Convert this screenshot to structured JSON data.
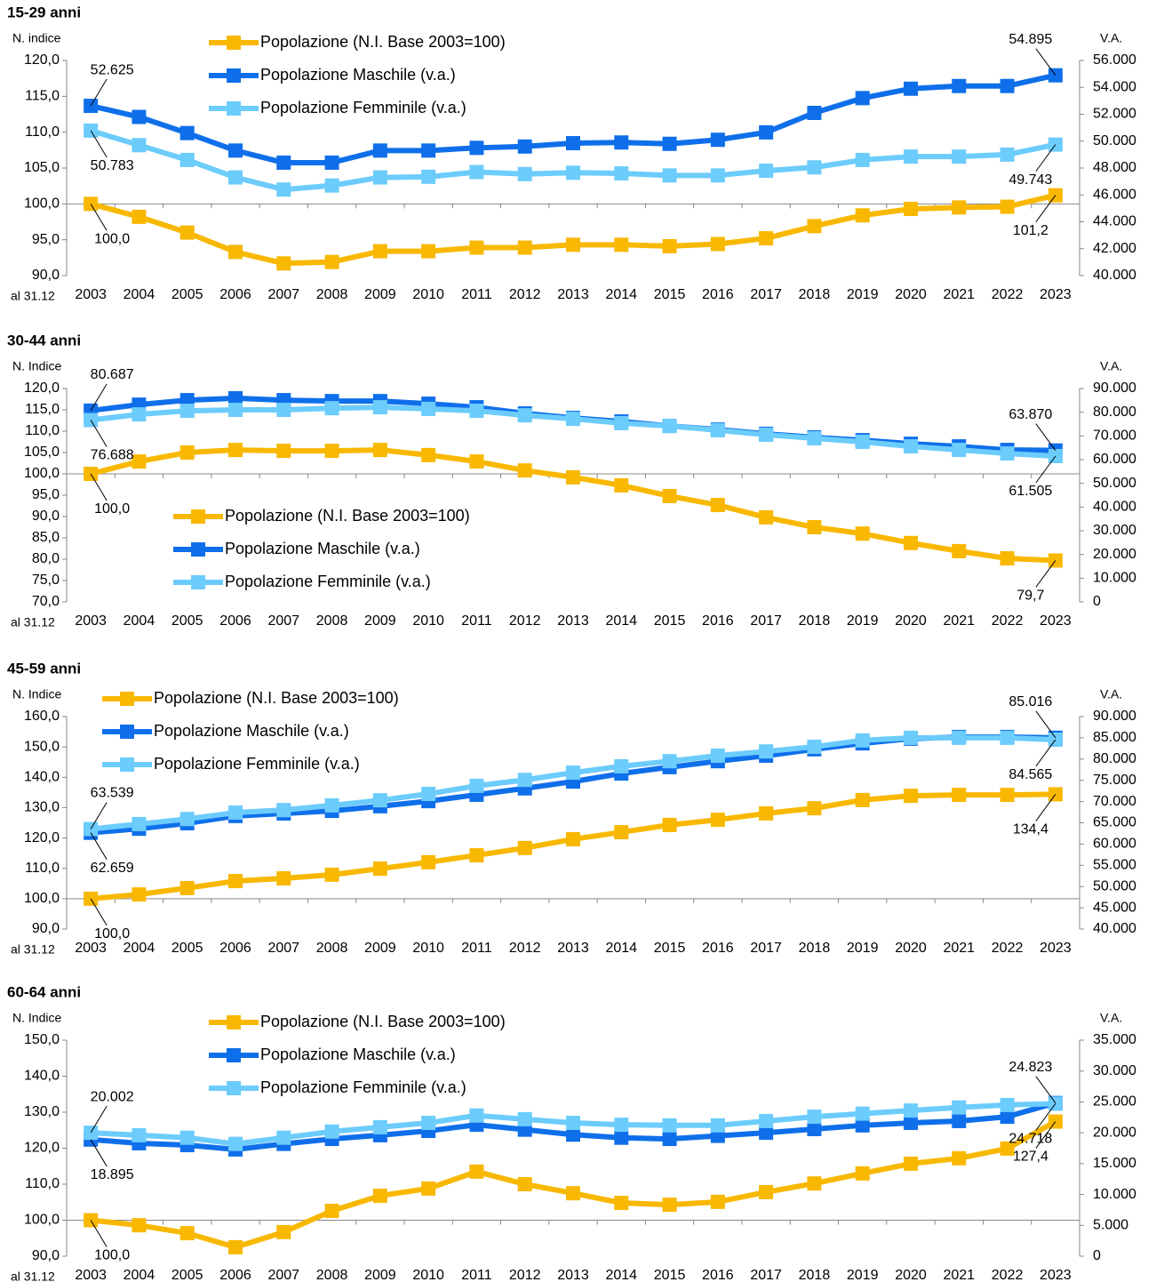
{
  "chart_data": [
    {
      "type": "line",
      "title": "15-29 anni",
      "y_label": "N. indice",
      "y2_label": "V.A.",
      "x_note": "al 31.12",
      "categories": [
        "2003",
        "2004",
        "2005",
        "2006",
        "2007",
        "2008",
        "2009",
        "2010",
        "2011",
        "2012",
        "2013",
        "2014",
        "2015",
        "2016",
        "2017",
        "2018",
        "2019",
        "2020",
        "2021",
        "2022",
        "2023"
      ],
      "series": [
        {
          "name": "Popolazione (N.I. Base 2003=100)",
          "color": "#f8b800",
          "values": [
            100.0,
            98.2,
            96.0,
            93.3,
            91.7,
            91.9,
            93.4,
            93.4,
            93.9,
            93.9,
            94.3,
            94.3,
            94.1,
            94.4,
            95.2,
            96.9,
            98.4,
            99.3,
            99.5,
            99.6,
            101.2
          ],
          "value_labels": [
            "100,0",
            null,
            null,
            null,
            null,
            null,
            null,
            null,
            null,
            null,
            null,
            null,
            null,
            null,
            null,
            null,
            null,
            null,
            null,
            null,
            "101,2"
          ]
        },
        {
          "name": "Popolazione Maschile (v.a.)",
          "color": "#0f6fea",
          "axis": "y2",
          "values": [
            52625,
            51800,
            50600,
            49300,
            48400,
            48400,
            49300,
            49300,
            49500,
            49600,
            49850,
            49900,
            49800,
            50100,
            50650,
            52100,
            53200,
            53900,
            54100,
            54100,
            54895
          ],
          "value_labels": [
            "52.625",
            null,
            null,
            null,
            null,
            null,
            null,
            null,
            null,
            null,
            null,
            null,
            null,
            null,
            null,
            null,
            null,
            null,
            null,
            null,
            "54.895"
          ]
        },
        {
          "name": "Popolazione Femminile (v.a.)",
          "color": "#6cccfb",
          "axis": "y2",
          "values": [
            50783,
            49700,
            48600,
            47300,
            46400,
            46700,
            47300,
            47350,
            47700,
            47550,
            47650,
            47600,
            47450,
            47450,
            47800,
            48050,
            48600,
            48850,
            48850,
            49000,
            49743
          ],
          "value_labels": [
            "50.783",
            null,
            null,
            null,
            null,
            null,
            null,
            null,
            null,
            null,
            null,
            null,
            null,
            null,
            null,
            null,
            null,
            null,
            null,
            null,
            "49.743"
          ]
        }
      ],
      "ylim": [
        90,
        120
      ],
      "yticks": [
        {
          "value": 90,
          "label": "90,0"
        },
        {
          "value": 95,
          "label": "95,0"
        },
        {
          "value": 100,
          "label": "100,0"
        },
        {
          "value": 105,
          "label": "105,0"
        },
        {
          "value": 110,
          "label": "110,0"
        },
        {
          "value": 115,
          "label": "115,0"
        },
        {
          "value": 120,
          "label": "120,0"
        }
      ],
      "y2lim": [
        40000,
        56000
      ],
      "y2ticks": [
        {
          "value": 40000,
          "label": "40.000"
        },
        {
          "value": 42000,
          "label": "42.000"
        },
        {
          "value": 44000,
          "label": "44.000"
        },
        {
          "value": 46000,
          "label": "46.000"
        },
        {
          "value": 48000,
          "label": "48.000"
        },
        {
          "value": 50000,
          "label": "50.000"
        },
        {
          "value": 52000,
          "label": "52.000"
        },
        {
          "value": 54000,
          "label": "54.000"
        },
        {
          "value": 56000,
          "label": "56.000"
        }
      ],
      "xaxis_at": 100,
      "legend_position": "top-center"
    },
    {
      "type": "line",
      "title": "30-44 anni",
      "y_label": "N. Indice",
      "y2_label": "V.A.",
      "x_note": "al 31.12",
      "categories": [
        "2003",
        "2004",
        "2005",
        "2006",
        "2007",
        "2008",
        "2009",
        "2010",
        "2011",
        "2012",
        "2013",
        "2014",
        "2015",
        "2016",
        "2017",
        "2018",
        "2019",
        "2020",
        "2021",
        "2022",
        "2023"
      ],
      "series": [
        {
          "name": "Popolazione (N.I. Base 2003=100)",
          "color": "#f8b800",
          "values": [
            100.0,
            102.9,
            105.0,
            105.6,
            105.4,
            105.4,
            105.6,
            104.4,
            102.9,
            100.8,
            99.2,
            97.3,
            94.8,
            92.7,
            89.8,
            87.5,
            86.0,
            83.8,
            81.9,
            80.2,
            79.7
          ],
          "value_labels": [
            "100,0",
            null,
            null,
            null,
            null,
            null,
            null,
            null,
            null,
            null,
            null,
            null,
            null,
            null,
            null,
            null,
            null,
            null,
            null,
            null,
            "79,7"
          ]
        },
        {
          "name": "Popolazione Maschile (v.a.)",
          "color": "#0f6fea",
          "axis": "y2",
          "values": [
            80687,
            83200,
            85100,
            85900,
            85100,
            84700,
            84700,
            83600,
            82100,
            79500,
            77600,
            76100,
            74200,
            72700,
            70900,
            69400,
            68200,
            66700,
            65600,
            64100,
            63870
          ],
          "value_labels": [
            "80.687",
            null,
            null,
            null,
            null,
            null,
            null,
            null,
            null,
            null,
            null,
            null,
            null,
            null,
            null,
            null,
            null,
            null,
            null,
            null,
            "63.870"
          ]
        },
        {
          "name": "Popolazione Femminile (v.a.)",
          "color": "#6cccfb",
          "axis": "y2",
          "values": [
            76688,
            79100,
            80600,
            81000,
            81000,
            81700,
            82100,
            81400,
            80600,
            78700,
            77200,
            75400,
            74200,
            72400,
            70500,
            69000,
            67500,
            65600,
            64100,
            62600,
            61505
          ],
          "value_labels": [
            "76.688",
            null,
            null,
            null,
            null,
            null,
            null,
            null,
            null,
            null,
            null,
            null,
            null,
            null,
            null,
            null,
            null,
            null,
            null,
            null,
            "61.505"
          ]
        }
      ],
      "ylim": [
        70,
        120
      ],
      "yticks": [
        {
          "value": 70,
          "label": "70,0"
        },
        {
          "value": 75,
          "label": "75,0"
        },
        {
          "value": 80,
          "label": "80,0"
        },
        {
          "value": 85,
          "label": "85,0"
        },
        {
          "value": 90,
          "label": "90,0"
        },
        {
          "value": 95,
          "label": "95,0"
        },
        {
          "value": 100,
          "label": "100,0"
        },
        {
          "value": 105,
          "label": "105,0"
        },
        {
          "value": 110,
          "label": "110,0"
        },
        {
          "value": 115,
          "label": "115,0"
        },
        {
          "value": 120,
          "label": "120,0"
        }
      ],
      "y2lim": [
        0,
        90000
      ],
      "y2ticks": [
        0,
        {
          "value": 10000,
          "label": "10.000"
        },
        {
          "value": 20000,
          "label": "20.000"
        },
        {
          "value": 30000,
          "label": "30.000"
        },
        {
          "value": 40000,
          "label": "40.000"
        },
        {
          "value": 50000,
          "label": "50.000"
        },
        {
          "value": 60000,
          "label": "60.000"
        },
        {
          "value": 70000,
          "label": "70.000"
        },
        {
          "value": 80000,
          "label": "80.000"
        },
        {
          "value": 90000,
          "label": "90.000"
        }
      ],
      "xaxis_at": 100,
      "legend_position": "bottom-left"
    },
    {
      "type": "line",
      "title": "45-59 anni",
      "y_label": "N. Indice",
      "y2_label": "V.A.",
      "x_note": "al 31.12",
      "categories": [
        "2003",
        "2004",
        "2005",
        "2006",
        "2007",
        "2008",
        "2009",
        "2010",
        "2011",
        "2012",
        "2013",
        "2014",
        "2015",
        "2016",
        "2017",
        "2018",
        "2019",
        "2020",
        "2021",
        "2022",
        "2023"
      ],
      "series": [
        {
          "name": "Popolazione (N.I. Base 2003=100)",
          "color": "#f8b800",
          "values": [
            100.0,
            101.4,
            103.5,
            105.8,
            106.7,
            107.9,
            109.9,
            112.0,
            114.3,
            116.7,
            119.6,
            121.9,
            124.3,
            126.0,
            128.1,
            129.8,
            132.5,
            133.9,
            134.2,
            134.2,
            134.4
          ],
          "value_labels": [
            "100,0",
            null,
            null,
            null,
            null,
            null,
            null,
            null,
            null,
            null,
            null,
            null,
            null,
            null,
            null,
            null,
            null,
            null,
            null,
            null,
            "134,4"
          ]
        },
        {
          "name": "Popolazione Maschile (v.a.)",
          "color": "#0f6fea",
          "axis": "y2",
          "values": [
            62659,
            63600,
            64900,
            66600,
            67200,
            67800,
            68900,
            70100,
            71600,
            73100,
            74700,
            76600,
            78100,
            79500,
            80800,
            82300,
            83700,
            84800,
            85200,
            85200,
            85016
          ],
          "value_labels": [
            "62.659",
            null,
            null,
            null,
            null,
            null,
            null,
            null,
            null,
            null,
            null,
            null,
            null,
            null,
            null,
            null,
            null,
            null,
            null,
            null,
            "85.016"
          ]
        },
        {
          "name": "Popolazione Femminile (v.a.)",
          "color": "#6cccfb",
          "axis": "y2",
          "values": [
            63539,
            64700,
            65900,
            67400,
            68000,
            69100,
            70300,
            71800,
            73700,
            75100,
            76800,
            78300,
            79500,
            80800,
            81800,
            82900,
            84400,
            85000,
            85000,
            85000,
            84565
          ],
          "value_labels": [
            "63.539",
            null,
            null,
            null,
            null,
            null,
            null,
            null,
            null,
            null,
            null,
            null,
            null,
            null,
            null,
            null,
            null,
            null,
            null,
            null,
            "84.565"
          ]
        }
      ],
      "ylim": [
        90,
        160
      ],
      "yticks": [
        {
          "value": 90,
          "label": "90,0"
        },
        {
          "value": 100,
          "label": "100,0"
        },
        {
          "value": 110,
          "label": "110,0"
        },
        {
          "value": 120,
          "label": "120,0"
        },
        {
          "value": 130,
          "label": "130,0"
        },
        {
          "value": 140,
          "label": "140,0"
        },
        {
          "value": 150,
          "label": "150,0"
        },
        {
          "value": 160,
          "label": "160,0"
        }
      ],
      "y2lim": [
        40000,
        90000
      ],
      "y2ticks": [
        {
          "value": 40000,
          "label": "40.000"
        },
        {
          "value": 45000,
          "label": "45.000"
        },
        {
          "value": 50000,
          "label": "50.000"
        },
        {
          "value": 55000,
          "label": "55.000"
        },
        {
          "value": 60000,
          "label": "60.000"
        },
        {
          "value": 65000,
          "label": "65.000"
        },
        {
          "value": 70000,
          "label": "70.000"
        },
        {
          "value": 75000,
          "label": "75.000"
        },
        {
          "value": 80000,
          "label": "80.000"
        },
        {
          "value": 85000,
          "label": "85.000"
        },
        {
          "value": 90000,
          "label": "90.000"
        }
      ],
      "xaxis_at": 100,
      "legend_position": "top-left"
    },
    {
      "type": "line",
      "title": "60-64 anni",
      "y_label": "N. Indice",
      "y2_label": "V.A.",
      "x_note": "al 31.12",
      "categories": [
        "2003",
        "2004",
        "2005",
        "2006",
        "2007",
        "2008",
        "2009",
        "2010",
        "2011",
        "2012",
        "2013",
        "2014",
        "2015",
        "2016",
        "2017",
        "2018",
        "2019",
        "2020",
        "2021",
        "2022",
        "2023"
      ],
      "series": [
        {
          "name": "Popolazione (N.I. Base 2003=100)",
          "color": "#f8b800",
          "values": [
            100.0,
            98.6,
            96.4,
            92.5,
            96.7,
            102.6,
            106.8,
            108.8,
            113.5,
            110.0,
            107.5,
            104.8,
            104.3,
            105.1,
            107.8,
            110.2,
            113.0,
            115.7,
            117.2,
            119.9,
            127.4
          ],
          "value_labels": [
            "100,0",
            null,
            null,
            null,
            null,
            null,
            null,
            null,
            null,
            null,
            null,
            null,
            null,
            null,
            null,
            null,
            null,
            null,
            null,
            null,
            "127,4"
          ]
        },
        {
          "name": "Popolazione Maschile (v.a.)",
          "color": "#0f6fea",
          "axis": "y2",
          "values": [
            18895,
            18300,
            18000,
            17300,
            18200,
            19000,
            19600,
            20300,
            21300,
            20500,
            19700,
            19200,
            19000,
            19500,
            20000,
            20600,
            21200,
            21600,
            21900,
            22600,
            24823
          ],
          "value_labels": [
            "18.895",
            null,
            null,
            null,
            null,
            null,
            null,
            null,
            null,
            null,
            null,
            null,
            null,
            null,
            null,
            null,
            null,
            null,
            null,
            null,
            "24.823"
          ]
        },
        {
          "name": "Popolazione Femminile (v.a.)",
          "color": "#6cccfb",
          "axis": "y2",
          "values": [
            20002,
            19600,
            19200,
            18200,
            19200,
            20200,
            20900,
            21600,
            22800,
            22200,
            21600,
            21300,
            21200,
            21200,
            21900,
            22600,
            23100,
            23600,
            24100,
            24500,
            24718
          ],
          "value_labels": [
            "20.002",
            null,
            null,
            null,
            null,
            null,
            null,
            null,
            null,
            null,
            null,
            null,
            null,
            null,
            null,
            null,
            null,
            null,
            null,
            null,
            "24.718"
          ]
        }
      ],
      "ylim": [
        90,
        150
      ],
      "yticks": [
        {
          "value": 90,
          "label": "90,0"
        },
        {
          "value": 100,
          "label": "100,0"
        },
        {
          "value": 110,
          "label": "110,0"
        },
        {
          "value": 120,
          "label": "120,0"
        },
        {
          "value": 130,
          "label": "130,0"
        },
        {
          "value": 140,
          "label": "140,0"
        },
        {
          "value": 150,
          "label": "150,0"
        }
      ],
      "y2lim": [
        0,
        35000
      ],
      "y2ticks": [
        0,
        {
          "value": 5000,
          "label": "5.000"
        },
        {
          "value": 10000,
          "label": "10.000"
        },
        {
          "value": 15000,
          "label": "15.000"
        },
        {
          "value": 20000,
          "label": "20.000"
        },
        {
          "value": 25000,
          "label": "25.000"
        },
        {
          "value": 30000,
          "label": "30.000"
        },
        {
          "value": 35000,
          "label": "35.000"
        }
      ],
      "xaxis_at": 100,
      "legend_position": "top-center"
    }
  ]
}
